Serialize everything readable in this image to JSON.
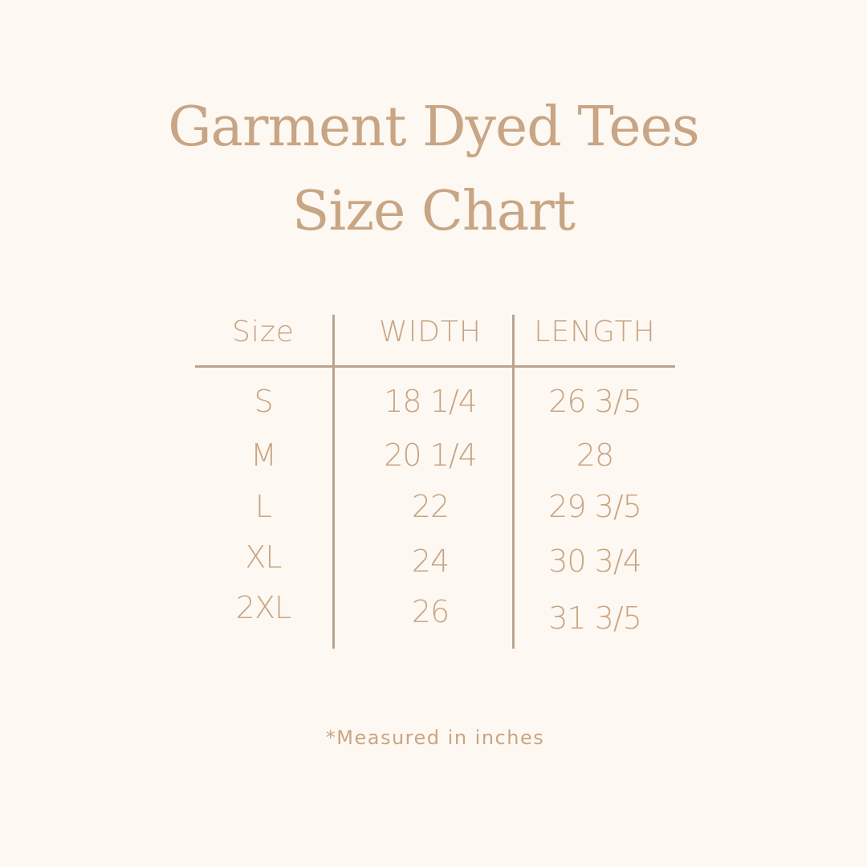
{
  "title_line1": "Garment Dyed Tees",
  "title_line2": "Size Chart",
  "footnote": "*Measured in inches",
  "colors": {
    "background": "#fdf8f1",
    "text": "#c8a584",
    "lines": "#b9a48f"
  },
  "chart_data": {
    "type": "table",
    "columns": [
      "Size",
      "WIDTH",
      "LENGTH"
    ],
    "rows": [
      [
        "S",
        "18 1/4",
        "26 3/5"
      ],
      [
        "M",
        "20 1/4",
        "28"
      ],
      [
        "L",
        "22",
        "29 3/5"
      ],
      [
        "XL",
        "24",
        "30 3/4"
      ],
      [
        "2XL",
        "26",
        "31 3/5"
      ]
    ]
  }
}
